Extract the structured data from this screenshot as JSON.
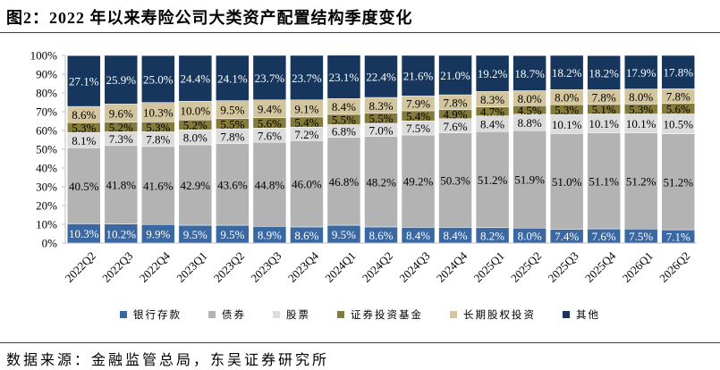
{
  "source": "数据来源：金融监管总局，东吴证券研究所",
  "chart_data": {
    "type": "bar",
    "stacked": true,
    "title": "图2：2022 年以来寿险公司大类资产配置结构季度变化",
    "categories": [
      "2022Q2",
      "2022Q3",
      "2022Q4",
      "2023Q1",
      "2023Q2",
      "2023Q3",
      "2023Q4",
      "2024Q1",
      "2024Q2",
      "2024Q3",
      "2024Q4",
      "2025Q1",
      "2025Q2",
      "2025Q3",
      "2025Q4",
      "2026Q1",
      "2026Q2"
    ],
    "series": [
      {
        "name": "银行存款",
        "color": "#3a68a2",
        "label_color": "#ffffff",
        "values": [
          10.3,
          10.2,
          9.9,
          9.5,
          9.5,
          8.9,
          8.6,
          9.5,
          8.6,
          8.4,
          8.4,
          8.2,
          8.0,
          7.4,
          7.6,
          7.5,
          7.1
        ]
      },
      {
        "name": "债券",
        "color": "#b3b3b3",
        "label_color": "#000000",
        "values": [
          40.5,
          41.8,
          41.6,
          42.9,
          43.6,
          44.8,
          46.0,
          46.8,
          48.2,
          49.2,
          50.3,
          51.2,
          51.9,
          51.0,
          51.1,
          51.2,
          51.2
        ]
      },
      {
        "name": "股票",
        "color": "#dcdcdc",
        "label_color": "#000000",
        "values": [
          8.1,
          7.3,
          7.8,
          8.0,
          7.8,
          7.6,
          7.2,
          6.8,
          7.0,
          7.5,
          7.6,
          8.4,
          8.8,
          10.1,
          10.1,
          10.1,
          10.5
        ]
      },
      {
        "name": "证券投资基金",
        "color": "#847a3a",
        "label_color": "#000000",
        "values": [
          5.3,
          5.2,
          5.3,
          5.2,
          5.5,
          5.6,
          5.4,
          5.5,
          5.5,
          5.4,
          4.9,
          4.7,
          4.5,
          5.3,
          5.1,
          5.3,
          5.6
        ]
      },
      {
        "name": "长期股权投资",
        "color": "#d3c59d",
        "label_color": "#000000",
        "values": [
          8.6,
          9.6,
          10.3,
          10.0,
          9.5,
          9.4,
          9.1,
          8.4,
          8.3,
          7.9,
          7.8,
          8.3,
          8.0,
          8.0,
          7.8,
          8.0,
          7.8
        ]
      },
      {
        "name": "其他",
        "color": "#17365d",
        "label_color": "#ffffff",
        "values": [
          27.1,
          25.9,
          25.0,
          24.4,
          24.1,
          23.7,
          23.7,
          23.1,
          22.4,
          21.6,
          21.0,
          19.2,
          18.7,
          18.2,
          18.2,
          17.9,
          17.8
        ]
      }
    ],
    "ylim": [
      0,
      100
    ],
    "y_ticks": [
      0,
      10,
      20,
      30,
      40,
      50,
      60,
      70,
      80,
      90,
      100
    ],
    "y_tick_labels": [
      "0%",
      "10%",
      "20%",
      "30%",
      "40%",
      "50%",
      "60%",
      "70%",
      "80%",
      "90%",
      "100%"
    ],
    "grid": false,
    "legend_position": "bottom"
  }
}
